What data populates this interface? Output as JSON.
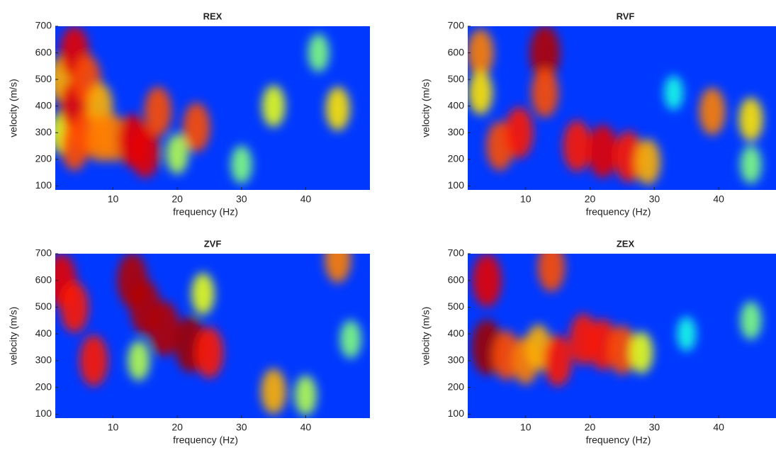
{
  "chart_data": [
    {
      "type": "heatmap",
      "title": "REX",
      "xlabel": "frequency (Hz)",
      "ylabel": "velocity (m/s)",
      "colormap": "jet",
      "xlim": [
        1,
        50
      ],
      "ylim": [
        85,
        700
      ],
      "xticks": [
        10,
        20,
        30,
        40
      ],
      "yticks": [
        100,
        200,
        300,
        400,
        500,
        600,
        700
      ],
      "x": [
        2,
        2,
        4,
        4,
        4,
        6,
        6,
        8,
        8,
        10,
        13,
        15,
        17,
        23,
        20,
        35,
        45,
        42,
        30
      ],
      "y": [
        500,
        300,
        600,
        400,
        250,
        500,
        300,
        400,
        280,
        280,
        270,
        230,
        380,
        320,
        220,
        400,
        390,
        600,
        180
      ],
      "values": [
        0.7,
        0.6,
        0.9,
        0.9,
        0.8,
        0.8,
        0.8,
        0.7,
        0.75,
        0.75,
        0.9,
        0.9,
        0.8,
        0.8,
        0.55,
        0.6,
        0.65,
        0.5,
        0.5
      ]
    },
    {
      "type": "heatmap",
      "title": "RVF",
      "xlabel": "frequency (Hz)",
      "ylabel": "velocity (m/s)",
      "colormap": "jet",
      "xlim": [
        1,
        50
      ],
      "ylim": [
        85,
        700
      ],
      "xticks": [
        10,
        20,
        30,
        40
      ],
      "yticks": [
        100,
        200,
        300,
        400,
        500,
        600,
        700
      ],
      "x": [
        3,
        3,
        6,
        9,
        13,
        13,
        18,
        22,
        26,
        29,
        39,
        45,
        33,
        45
      ],
      "y": [
        600,
        450,
        250,
        300,
        600,
        450,
        250,
        230,
        210,
        190,
        380,
        350,
        450,
        180
      ],
      "values": [
        0.75,
        0.65,
        0.8,
        0.85,
        0.95,
        0.8,
        0.85,
        0.9,
        0.85,
        0.7,
        0.75,
        0.65,
        0.4,
        0.5
      ]
    },
    {
      "type": "heatmap",
      "title": "ZVF",
      "xlabel": "frequency (Hz)",
      "ylabel": "velocity (m/s)",
      "colormap": "jet",
      "xlim": [
        1,
        50
      ],
      "ylim": [
        85,
        700
      ],
      "xticks": [
        10,
        20,
        30,
        40
      ],
      "yticks": [
        100,
        200,
        300,
        400,
        500,
        600,
        700
      ],
      "x": [
        2,
        4,
        7,
        13,
        15,
        18,
        22,
        25,
        24,
        14,
        35,
        40,
        45,
        47
      ],
      "y": [
        600,
        500,
        300,
        600,
        500,
        420,
        360,
        330,
        550,
        300,
        185,
        170,
        680,
        380
      ],
      "values": [
        0.9,
        0.85,
        0.85,
        0.95,
        0.95,
        0.95,
        0.97,
        0.85,
        0.6,
        0.55,
        0.7,
        0.55,
        0.75,
        0.5
      ]
    },
    {
      "type": "heatmap",
      "title": "ZEX",
      "xlabel": "frequency (Hz)",
      "ylabel": "velocity (m/s)",
      "colormap": "jet",
      "xlim": [
        1,
        50
      ],
      "ylim": [
        85,
        700
      ],
      "xticks": [
        10,
        20,
        30,
        40
      ],
      "yticks": [
        100,
        200,
        300,
        400,
        500,
        600,
        700
      ],
      "x": [
        4,
        4,
        7,
        10,
        12,
        14,
        15,
        19,
        22,
        25,
        28,
        35,
        45
      ],
      "y": [
        600,
        350,
        320,
        300,
        350,
        650,
        300,
        380,
        360,
        340,
        330,
        400,
        450
      ],
      "values": [
        0.9,
        0.97,
        0.8,
        0.75,
        0.7,
        0.8,
        0.85,
        0.85,
        0.85,
        0.8,
        0.6,
        0.4,
        0.5
      ]
    }
  ]
}
